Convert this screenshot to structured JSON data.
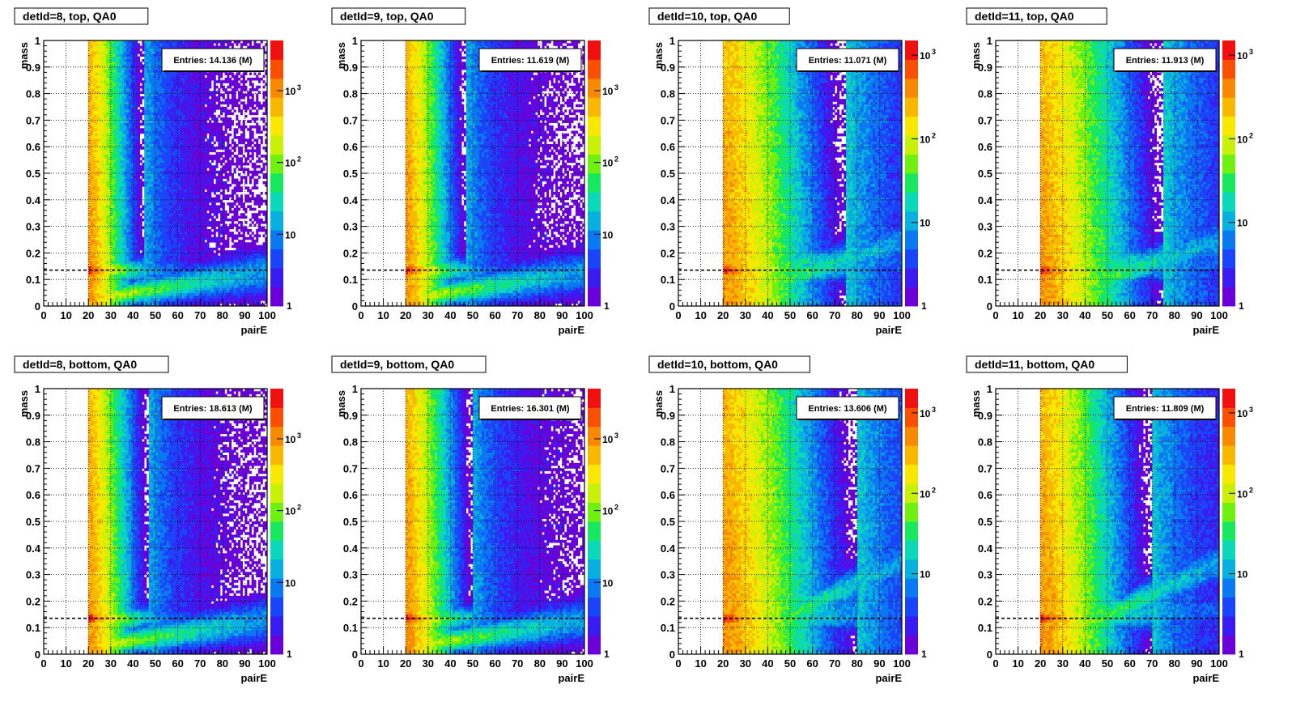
{
  "chart_data": [
    {
      "type": "heatmap",
      "title": "detId=8, top, QA0",
      "xlabel": "pairE",
      "ylabel": "mass",
      "xlim": [
        0,
        100
      ],
      "ylim": [
        0,
        1
      ],
      "x_ticks": [
        "0",
        "10",
        "20",
        "30",
        "40",
        "50",
        "60",
        "70",
        "80",
        "90",
        "100"
      ],
      "y_ticks": [
        "0",
        "0.1",
        "0.2",
        "0.3",
        "0.4",
        "0.5",
        "0.6",
        "0.7",
        "0.8",
        "0.9",
        "1"
      ],
      "z_scale": "log",
      "z_range": [
        1,
        5000
      ],
      "z_ticks": [
        {
          "value": 10,
          "base": "10",
          "exp": ""
        },
        {
          "value": 100,
          "base": "10",
          "exp": "2"
        },
        {
          "value": 1000,
          "base": "10",
          "exp": "3"
        }
      ],
      "z_min_label": "1",
      "stats": "Entries: 14.136 (M)",
      "entries_millions": 14.136,
      "pairE_threshold": 20,
      "reference_mass": 0.135,
      "band_edge_pairE": 45,
      "diagonal_band_slope": 0.0008
    },
    {
      "type": "heatmap",
      "title": "detId=9, top, QA0",
      "xlabel": "pairE",
      "ylabel": "mass",
      "xlim": [
        0,
        100
      ],
      "ylim": [
        0,
        1
      ],
      "x_ticks": [
        "0",
        "10",
        "20",
        "30",
        "40",
        "50",
        "60",
        "70",
        "80",
        "90",
        "100"
      ],
      "y_ticks": [
        "0",
        "0.1",
        "0.2",
        "0.3",
        "0.4",
        "0.5",
        "0.6",
        "0.7",
        "0.8",
        "0.9",
        "1"
      ],
      "z_scale": "log",
      "z_range": [
        1,
        5000
      ],
      "z_ticks": [
        {
          "value": 10,
          "base": "10",
          "exp": ""
        },
        {
          "value": 100,
          "base": "10",
          "exp": "2"
        },
        {
          "value": 1000,
          "base": "10",
          "exp": "3"
        }
      ],
      "z_min_label": "1",
      "stats": "Entries: 11.619 (M)",
      "entries_millions": 11.619,
      "pairE_threshold": 20,
      "reference_mass": 0.135,
      "band_edge_pairE": 47,
      "diagonal_band_slope": 0.0008
    },
    {
      "type": "heatmap",
      "title": "detId=10, top, QA0",
      "xlabel": "pairE",
      "ylabel": "mass",
      "xlim": [
        0,
        100
      ],
      "ylim": [
        0,
        1
      ],
      "x_ticks": [
        "0",
        "10",
        "20",
        "30",
        "40",
        "50",
        "60",
        "70",
        "80",
        "90",
        "100"
      ],
      "y_ticks": [
        "0",
        "0.1",
        "0.2",
        "0.3",
        "0.4",
        "0.5",
        "0.6",
        "0.7",
        "0.8",
        "0.9",
        "1"
      ],
      "z_scale": "log",
      "z_range": [
        1,
        1500
      ],
      "z_ticks": [
        {
          "value": 10,
          "base": "10",
          "exp": ""
        },
        {
          "value": 100,
          "base": "10",
          "exp": "2"
        },
        {
          "value": 1000,
          "base": "10",
          "exp": "3"
        }
      ],
      "z_min_label": "1",
      "stats": "Entries: 11.071 (M)",
      "entries_millions": 11.071,
      "pairE_threshold": 20,
      "reference_mass": 0.135,
      "band_edge_pairE": 75,
      "diagonal_band_slope": 0.0017
    },
    {
      "type": "heatmap",
      "title": "detId=11, top, QA0",
      "xlabel": "pairE",
      "ylabel": "mass",
      "xlim": [
        0,
        100
      ],
      "ylim": [
        0,
        1
      ],
      "x_ticks": [
        "0",
        "10",
        "20",
        "30",
        "40",
        "50",
        "60",
        "70",
        "80",
        "90",
        "100"
      ],
      "y_ticks": [
        "0",
        "0.1",
        "0.2",
        "0.3",
        "0.4",
        "0.5",
        "0.6",
        "0.7",
        "0.8",
        "0.9",
        "1"
      ],
      "z_scale": "log",
      "z_range": [
        1,
        1500
      ],
      "z_ticks": [
        {
          "value": 10,
          "base": "10",
          "exp": ""
        },
        {
          "value": 100,
          "base": "10",
          "exp": "2"
        },
        {
          "value": 1000,
          "base": "10",
          "exp": "3"
        }
      ],
      "z_min_label": "1",
      "stats": "Entries: 11.913 (M)",
      "entries_millions": 11.913,
      "pairE_threshold": 20,
      "reference_mass": 0.135,
      "band_edge_pairE": 75,
      "diagonal_band_slope": 0.0017
    },
    {
      "type": "heatmap",
      "title": "detId=8, bottom, QA0",
      "xlabel": "pairE",
      "ylabel": "mass",
      "xlim": [
        0,
        100
      ],
      "ylim": [
        0,
        1
      ],
      "x_ticks": [
        "0",
        "10",
        "20",
        "30",
        "40",
        "50",
        "60",
        "70",
        "80",
        "90",
        "100"
      ],
      "y_ticks": [
        "0",
        "0.1",
        "0.2",
        "0.3",
        "0.4",
        "0.5",
        "0.6",
        "0.7",
        "0.8",
        "0.9",
        "1"
      ],
      "z_scale": "log",
      "z_range": [
        1,
        5000
      ],
      "z_ticks": [
        {
          "value": 10,
          "base": "10",
          "exp": ""
        },
        {
          "value": 100,
          "base": "10",
          "exp": "2"
        },
        {
          "value": 1000,
          "base": "10",
          "exp": "3"
        }
      ],
      "z_min_label": "1",
      "stats": "Entries: 18.613 (M)",
      "entries_millions": 18.613,
      "pairE_threshold": 20,
      "reference_mass": 0.135,
      "band_edge_pairE": 47,
      "diagonal_band_slope": 0.0008
    },
    {
      "type": "heatmap",
      "title": "detId=9, bottom, QA0",
      "xlabel": "pairE",
      "ylabel": "mass",
      "xlim": [
        0,
        100
      ],
      "ylim": [
        0,
        1
      ],
      "x_ticks": [
        "0",
        "10",
        "20",
        "30",
        "40",
        "50",
        "60",
        "70",
        "80",
        "90",
        "100"
      ],
      "y_ticks": [
        "0",
        "0.1",
        "0.2",
        "0.3",
        "0.4",
        "0.5",
        "0.6",
        "0.7",
        "0.8",
        "0.9",
        "1"
      ],
      "z_scale": "log",
      "z_range": [
        1,
        5000
      ],
      "z_ticks": [
        {
          "value": 10,
          "base": "10",
          "exp": ""
        },
        {
          "value": 100,
          "base": "10",
          "exp": "2"
        },
        {
          "value": 1000,
          "base": "10",
          "exp": "3"
        }
      ],
      "z_min_label": "1",
      "stats": "Entries: 16.301 (M)",
      "entries_millions": 16.301,
      "pairE_threshold": 20,
      "reference_mass": 0.135,
      "band_edge_pairE": 50,
      "diagonal_band_slope": 0.0008
    },
    {
      "type": "heatmap",
      "title": "detId=10, bottom, QA0",
      "xlabel": "pairE",
      "ylabel": "mass",
      "xlim": [
        0,
        100
      ],
      "ylim": [
        0,
        1
      ],
      "x_ticks": [
        "0",
        "10",
        "20",
        "30",
        "40",
        "50",
        "60",
        "70",
        "80",
        "90",
        "100"
      ],
      "y_ticks": [
        "0",
        "0.1",
        "0.2",
        "0.3",
        "0.4",
        "0.5",
        "0.6",
        "0.7",
        "0.8",
        "0.9",
        "1"
      ],
      "z_scale": "log",
      "z_range": [
        1,
        2000
      ],
      "z_ticks": [
        {
          "value": 10,
          "base": "10",
          "exp": ""
        },
        {
          "value": 100,
          "base": "10",
          "exp": "2"
        },
        {
          "value": 1000,
          "base": "10",
          "exp": "3"
        }
      ],
      "z_min_label": "1",
      "stats": "Entries: 13.606 (M)",
      "entries_millions": 13.606,
      "pairE_threshold": 20,
      "reference_mass": 0.135,
      "band_edge_pairE": 80,
      "diagonal_band_slope": 0.0025
    },
    {
      "type": "heatmap",
      "title": "detId=11, bottom, QA0",
      "xlabel": "pairE",
      "ylabel": "mass",
      "xlim": [
        0,
        100
      ],
      "ylim": [
        0,
        1
      ],
      "x_ticks": [
        "0",
        "10",
        "20",
        "30",
        "40",
        "50",
        "60",
        "70",
        "80",
        "90",
        "100"
      ],
      "y_ticks": [
        "0",
        "0.1",
        "0.2",
        "0.3",
        "0.4",
        "0.5",
        "0.6",
        "0.7",
        "0.8",
        "0.9",
        "1"
      ],
      "z_scale": "log",
      "z_range": [
        1,
        2000
      ],
      "z_ticks": [
        {
          "value": 10,
          "base": "10",
          "exp": ""
        },
        {
          "value": 100,
          "base": "10",
          "exp": "2"
        },
        {
          "value": 1000,
          "base": "10",
          "exp": "3"
        }
      ],
      "z_min_label": "1",
      "stats": "Entries: 11.809 (M)",
      "entries_millions": 11.809,
      "pairE_threshold": 20,
      "reference_mass": 0.135,
      "band_edge_pairE": 70,
      "diagonal_band_slope": 0.0025
    }
  ],
  "palette": [
    "#6a00d8",
    "#3a1cf0",
    "#1a44f8",
    "#0a78f0",
    "#08b0e0",
    "#0ad8b8",
    "#18e860",
    "#70f010",
    "#c8f008",
    "#f8e800",
    "#f8b800",
    "#f88800",
    "#f85000",
    "#f01010"
  ],
  "colors": {
    "reference_line": "#000000",
    "background": "#ffffff",
    "frame": "#000000"
  }
}
